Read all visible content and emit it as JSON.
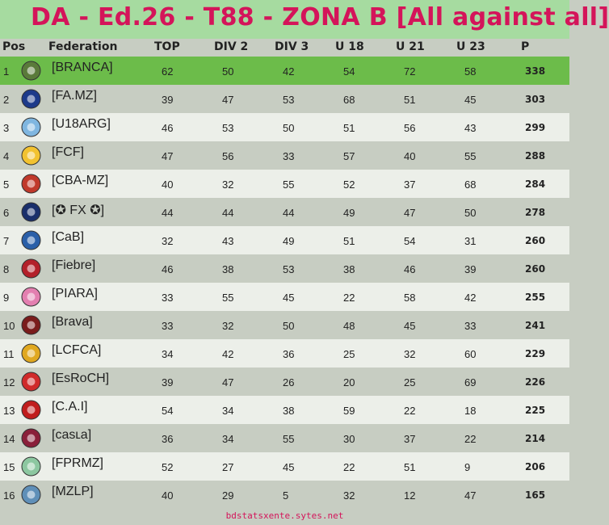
{
  "title": "DA - Ed.26 - T88 - ZONA B  [All against all]",
  "headers": {
    "pos": "Pos",
    "federation": "Federation",
    "top": "TOP",
    "div2": "DIV 2",
    "div3": "DIV 3",
    "u18": "U 18",
    "u21": "U 21",
    "u23": "U 23",
    "p": "P"
  },
  "rows": [
    {
      "pos": "1",
      "federation": "[BRANCA]",
      "top": "62",
      "div2": "50",
      "div3": "42",
      "u18": "54",
      "u21": "72",
      "u23": "58",
      "p": "338",
      "icon": "bird-crest-icon",
      "color": "#5a7a3a"
    },
    {
      "pos": "2",
      "federation": "[FA.MZ]",
      "top": "39",
      "div2": "47",
      "div3": "53",
      "u18": "68",
      "u21": "51",
      "u23": "45",
      "p": "303",
      "icon": "blue-shield-icon",
      "color": "#1d3a8a"
    },
    {
      "pos": "3",
      "federation": "[U18ARG]",
      "top": "46",
      "div2": "53",
      "div3": "50",
      "u18": "51",
      "u21": "56",
      "u23": "43",
      "p": "299",
      "icon": "argentina-crest-icon",
      "color": "#7fb6e0"
    },
    {
      "pos": "4",
      "federation": "[FCF]",
      "top": "47",
      "div2": "56",
      "div3": "33",
      "u18": "57",
      "u21": "40",
      "u23": "55",
      "p": "288",
      "icon": "colombia-crest-icon",
      "color": "#f2c230"
    },
    {
      "pos": "5",
      "federation": "[CBA-MZ]",
      "top": "40",
      "div2": "32",
      "div3": "55",
      "u18": "52",
      "u21": "37",
      "u23": "68",
      "p": "284",
      "icon": "red-crest-icon",
      "color": "#c0392b"
    },
    {
      "pos": "6",
      "federation": "[✪ FX ✪]",
      "top": "44",
      "div2": "44",
      "div3": "44",
      "u18": "49",
      "u21": "47",
      "u23": "50",
      "p": "278",
      "icon": "boca-crest-icon",
      "color": "#1a2f6b"
    },
    {
      "pos": "7",
      "federation": "[CaB]",
      "top": "32",
      "div2": "43",
      "div3": "49",
      "u18": "51",
      "u21": "54",
      "u23": "31",
      "p": "260",
      "icon": "blue-circle-crest-icon",
      "color": "#2a5fa8"
    },
    {
      "pos": "8",
      "federation": "[Fiebre]",
      "top": "46",
      "div2": "38",
      "div3": "53",
      "u18": "38",
      "u21": "46",
      "u23": "39",
      "p": "260",
      "icon": "red-black-crest-icon",
      "color": "#b3202a"
    },
    {
      "pos": "9",
      "federation": "[PIARA]",
      "top": "33",
      "div2": "55",
      "div3": "45",
      "u18": "22",
      "u21": "58",
      "u23": "42",
      "p": "255",
      "icon": "pink-circle-crest-icon",
      "color": "#e37fb0"
    },
    {
      "pos": "10",
      "federation": "[Brava]",
      "top": "33",
      "div2": "32",
      "div3": "50",
      "u18": "48",
      "u21": "45",
      "u23": "33",
      "p": "241",
      "icon": "dark-shield-crest-icon",
      "color": "#7a1c1c"
    },
    {
      "pos": "11",
      "federation": "[LCFCA]",
      "top": "34",
      "div2": "42",
      "div3": "36",
      "u18": "25",
      "u21": "32",
      "u23": "60",
      "p": "229",
      "icon": "yellow-crest-icon",
      "color": "#e0a820"
    },
    {
      "pos": "12",
      "federation": "[EsRoCH]",
      "top": "39",
      "div2": "47",
      "div3": "26",
      "u18": "20",
      "u21": "25",
      "u23": "69",
      "p": "226",
      "icon": "chile-crest-icon",
      "color": "#d02a2a"
    },
    {
      "pos": "13",
      "federation": "[C.A.I]",
      "top": "54",
      "div2": "34",
      "div3": "38",
      "u18": "59",
      "u21": "22",
      "u23": "18",
      "p": "225",
      "icon": "independiente-crest-icon",
      "color": "#c01d1d"
    },
    {
      "pos": "14",
      "federation": "[casʟa]",
      "top": "36",
      "div2": "34",
      "div3": "55",
      "u18": "30",
      "u21": "37",
      "u23": "22",
      "p": "214",
      "icon": "maroon-circle-crest-icon",
      "color": "#8a1f3a"
    },
    {
      "pos": "15",
      "federation": "[FPRMZ]",
      "top": "52",
      "div2": "27",
      "div3": "45",
      "u18": "22",
      "u21": "51",
      "u23": "9",
      "p": "206",
      "icon": "globe-crest-icon",
      "color": "#8cc7a0"
    },
    {
      "pos": "16",
      "federation": "[MZLP]",
      "top": "40",
      "div2": "29",
      "div3": "5",
      "u18": "32",
      "u21": "12",
      "u23": "47",
      "p": "165",
      "icon": "light-blue-shield-icon",
      "color": "#5f8fb8"
    }
  ],
  "footer": "bdstatsxente.sytes.net"
}
